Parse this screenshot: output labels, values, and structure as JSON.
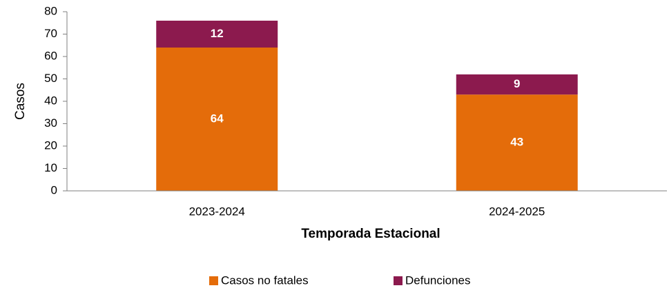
{
  "chart_data": {
    "type": "stacked_bar",
    "x_label": "Temporada Estacional",
    "y_label": "Casos",
    "categories": [
      "2023-2024",
      "2024-2025"
    ],
    "series": [
      {
        "name": "Casos no fatales",
        "color": "#e46c0a",
        "values": [
          64,
          43
        ]
      },
      {
        "name": "Defunciones",
        "color": "#8c1a4e",
        "values": [
          12,
          9
        ]
      }
    ],
    "ylim": [
      0,
      80
    ],
    "yticks": [
      0,
      10,
      20,
      30,
      40,
      50,
      60,
      70,
      80
    ],
    "legend": "bottom",
    "grid": false
  }
}
